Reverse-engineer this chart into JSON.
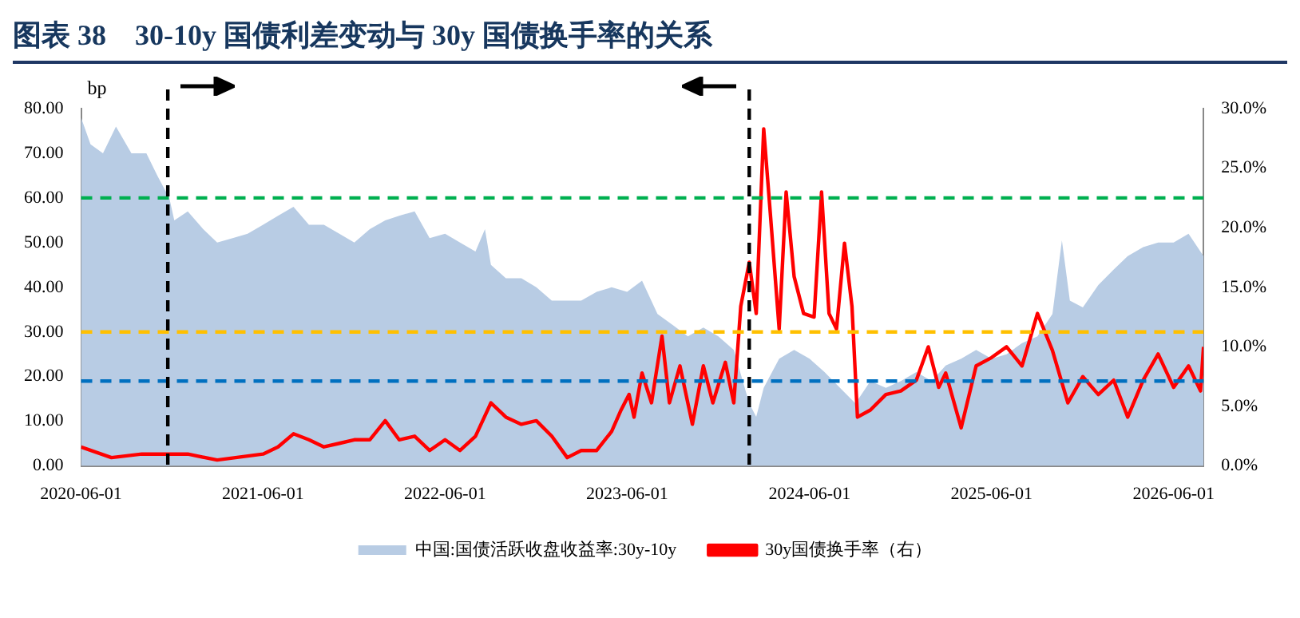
{
  "chart_data": {
    "type": "area",
    "title": "图表 38　30-10y 国债利差变动与 30y 国债换手率的关系",
    "ylabel": "bp",
    "xlim": [
      "2020-06-01",
      "2026-07-31"
    ],
    "xticks": [
      "2020-06-01",
      "2021-06-01",
      "2022-06-01",
      "2023-06-01",
      "2024-06-01",
      "2025-06-01",
      "2026-06-01"
    ],
    "ylim": [
      0,
      80
    ],
    "yticks": [
      {
        "value": 0,
        "label": "0.00"
      },
      {
        "value": 10,
        "label": "10.00"
      },
      {
        "value": 20,
        "label": "20.00"
      },
      {
        "value": 30,
        "label": "30.00"
      },
      {
        "value": 40,
        "label": "40.00"
      },
      {
        "value": 50,
        "label": "50.00"
      },
      {
        "value": 60,
        "label": "60.00"
      },
      {
        "value": 70,
        "label": "70.00"
      },
      {
        "value": 80,
        "label": "80.00"
      }
    ],
    "y2lim": [
      0,
      30
    ],
    "y2ticks": [
      {
        "value": 0,
        "label": "0.0%"
      },
      {
        "value": 5,
        "label": "5.0%"
      },
      {
        "value": 10,
        "label": "10.0%"
      },
      {
        "value": 15,
        "label": "15.0%"
      },
      {
        "value": 20,
        "label": "20.0%"
      },
      {
        "value": 25,
        "label": "25.0%"
      },
      {
        "value": 30,
        "label": "30.0%"
      }
    ],
    "grid": false,
    "legend": "bottom",
    "marker": "none",
    "series": [
      {
        "name": "中国:国债活跃收盘收益率:30y-10y",
        "color": "#b8cce4",
        "x": [
          "2020-06-01",
          "2020-06-20",
          "2020-07-15",
          "2020-08-10",
          "2020-09-10",
          "2020-10-10",
          "2020-11-01",
          "2020-11-25",
          "2020-12-05",
          "2021-01-01",
          "2021-02-01",
          "2021-03-01",
          "2021-04-01",
          "2021-05-01",
          "2021-06-01",
          "2021-07-01",
          "2021-08-01",
          "2021-09-01",
          "2021-10-01",
          "2021-11-01",
          "2021-12-01",
          "2022-01-01",
          "2022-02-01",
          "2022-03-01",
          "2022-04-01",
          "2022-05-01",
          "2022-06-01",
          "2022-07-01",
          "2022-08-01",
          "2022-08-20",
          "2022-09-01",
          "2022-10-01",
          "2022-11-01",
          "2022-12-01",
          "2023-01-01",
          "2023-02-01",
          "2023-03-01",
          "2023-04-01",
          "2023-05-01",
          "2023-06-01",
          "2023-07-01",
          "2023-08-01",
          "2023-09-01",
          "2023-10-01",
          "2023-11-01",
          "2023-12-01",
          "2024-01-01",
          "2024-02-01",
          "2024-02-15",
          "2024-03-01",
          "2024-04-01",
          "2024-05-01",
          "2024-06-01",
          "2024-07-01",
          "2024-08-01",
          "2024-09-01",
          "2024-10-01",
          "2024-11-01",
          "2024-12-01",
          "2025-01-01",
          "2025-02-01",
          "2025-03-01",
          "2025-04-01",
          "2025-05-01",
          "2025-06-01",
          "2025-07-01",
          "2025-08-01",
          "2025-09-01",
          "2025-10-01",
          "2025-10-20",
          "2025-11-05",
          "2025-12-01",
          "2026-01-01",
          "2026-02-01",
          "2026-03-01",
          "2026-04-01",
          "2026-05-01",
          "2026-06-01",
          "2026-07-01",
          "2026-07-31"
        ],
        "values": [
          78,
          72,
          70,
          76,
          70,
          70,
          65,
          60,
          55,
          57,
          53,
          50,
          51,
          52,
          54,
          56,
          58,
          54,
          54,
          52,
          50,
          53,
          55,
          56,
          57,
          51,
          52,
          50,
          48,
          53,
          45,
          42,
          42,
          40,
          37,
          37,
          37,
          39,
          40,
          39,
          41.5,
          34,
          31.5,
          29,
          31,
          29,
          26,
          14,
          11,
          17.5,
          24,
          26,
          24,
          21,
          17.5,
          14,
          19,
          17.5,
          19,
          21,
          19,
          22.5,
          24,
          26,
          24,
          25,
          27.5,
          29,
          34,
          50.5,
          37,
          35.5,
          40.5,
          44,
          47,
          49,
          50,
          50,
          52,
          47
        ]
      },
      {
        "name": "30y国债换手率（右）",
        "type": "line",
        "axis": "y2",
        "color": "#ff0000",
        "x": [
          "2020-06-01",
          "2020-08-01",
          "2020-10-01",
          "2021-01-01",
          "2021-03-01",
          "2021-06-01",
          "2021-07-01",
          "2021-08-01",
          "2021-09-01",
          "2021-10-01",
          "2021-11-01",
          "2021-12-01",
          "2022-01-01",
          "2022-02-01",
          "2022-03-01",
          "2022-04-01",
          "2022-05-01",
          "2022-06-01",
          "2022-07-01",
          "2022-08-01",
          "2022-09-01",
          "2022-10-01",
          "2022-11-01",
          "2022-12-01",
          "2023-01-01",
          "2023-02-01",
          "2023-03-01",
          "2023-04-01",
          "2023-05-01",
          "2023-05-20",
          "2023-06-05",
          "2023-06-15",
          "2023-07-01",
          "2023-07-20",
          "2023-08-10",
          "2023-08-25",
          "2023-09-15",
          "2023-10-10",
          "2023-11-01",
          "2023-11-20",
          "2023-12-15",
          "2024-01-01",
          "2024-01-15",
          "2024-02-01",
          "2024-02-15",
          "2024-03-01",
          "2024-03-15",
          "2024-04-01",
          "2024-04-15",
          "2024-05-01",
          "2024-05-20",
          "2024-06-10",
          "2024-06-25",
          "2024-07-10",
          "2024-07-25",
          "2024-08-10",
          "2024-08-25",
          "2024-09-05",
          "2024-10-01",
          "2024-11-01",
          "2024-12-01",
          "2025-01-01",
          "2025-01-25",
          "2025-02-15",
          "2025-03-01",
          "2025-04-01",
          "2025-05-01",
          "2025-06-01",
          "2025-07-01",
          "2025-08-01",
          "2025-09-01",
          "2025-10-01",
          "2025-11-01",
          "2025-12-01",
          "2026-01-01",
          "2026-02-01",
          "2026-03-01",
          "2026-04-01",
          "2026-05-01",
          "2026-06-01",
          "2026-07-01",
          "2026-07-25",
          "2026-07-31"
        ],
        "values": [
          1.6,
          0.7,
          1.0,
          1.0,
          0.5,
          1.0,
          1.6,
          2.7,
          2.2,
          1.6,
          1.9,
          2.2,
          2.2,
          3.8,
          2.2,
          2.5,
          1.3,
          2.2,
          1.3,
          2.5,
          5.3,
          4.1,
          3.5,
          3.8,
          2.5,
          0.7,
          1.3,
          1.3,
          2.9,
          4.7,
          6.0,
          4.1,
          7.8,
          5.3,
          10.9,
          5.3,
          8.4,
          3.5,
          8.4,
          5.3,
          8.7,
          5.3,
          13.4,
          17.1,
          12.8,
          28.3,
          20.8,
          11.5,
          23.0,
          15.9,
          12.8,
          12.5,
          23.0,
          12.8,
          11.5,
          18.7,
          13.4,
          4.1,
          4.7,
          6.0,
          6.3,
          7.2,
          10.0,
          6.6,
          7.8,
          3.2,
          8.4,
          9.1,
          10.0,
          8.4,
          12.8,
          9.7,
          5.3,
          7.5,
          6.0,
          7.2,
          4.1,
          7.2,
          9.4,
          6.6,
          8.4,
          6.3,
          10.0
        ]
      }
    ],
    "ref_lines": [
      {
        "axis": "y",
        "value": 60,
        "color": "#00b050",
        "line_style": "dashed"
      },
      {
        "axis": "y",
        "value": 30,
        "color": "#ffc000",
        "line_style": "dashed"
      },
      {
        "axis": "y",
        "value": 19,
        "color": "#0070c0",
        "line_style": "dashed"
      },
      {
        "axis": "x",
        "value": "2020-11-22",
        "color": "#000000",
        "line_style": "dashed"
      },
      {
        "axis": "x",
        "value": "2024-02-01",
        "color": "#000000",
        "line_style": "dashed"
      }
    ]
  }
}
